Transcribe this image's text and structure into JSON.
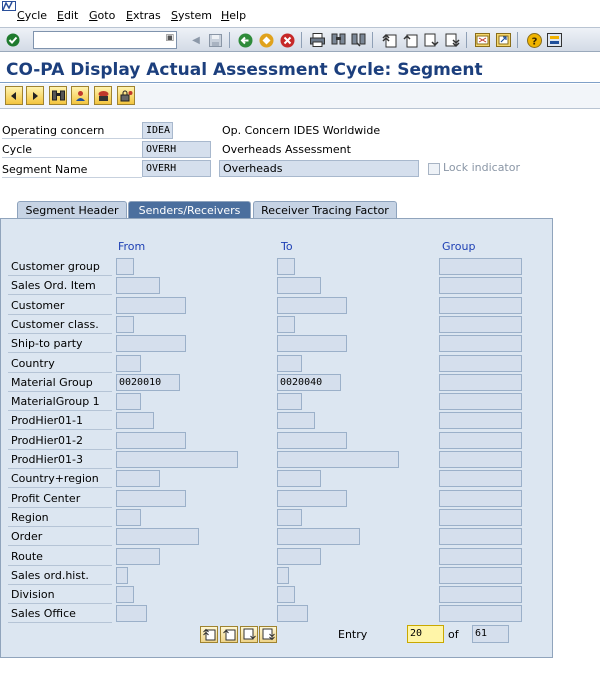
{
  "menubar": {
    "items": [
      {
        "label": "Cycle",
        "mnemonic": "C",
        "rest": "ycle"
      },
      {
        "label": "Edit",
        "mnemonic": "E",
        "rest": "dit"
      },
      {
        "label": "Goto",
        "mnemonic": "G",
        "rest": "oto"
      },
      {
        "label": "Extras",
        "mnemonic": "E",
        "rest": "xtras"
      },
      {
        "label": "System",
        "mnemonic": "S",
        "rest": "ystem"
      },
      {
        "label": "Help",
        "mnemonic": "H",
        "rest": "elp"
      }
    ]
  },
  "toolbar": {
    "command_value": "",
    "icons": [
      "enter-icon",
      "save-icon",
      "back-icon",
      "exit-icon",
      "cancel-icon",
      "print-icon",
      "find-icon",
      "find-next-icon",
      "first-page-icon",
      "previous-page-icon",
      "next-page-icon",
      "last-page-icon",
      "create-session-icon",
      "shortcut-icon",
      "help-icon",
      "customize-layout-icon"
    ]
  },
  "title": "CO-PA Display Actual Assessment Cycle: Segment",
  "appbar": {
    "icons": [
      "previous-segment-icon",
      "next-segment-icon",
      "find-segment-icon",
      "other-segment-icon",
      "attributes-icon",
      "lock-icon"
    ]
  },
  "header": {
    "operating_concern": {
      "label": "Operating concern",
      "value": "IDEA",
      "desc": "Op. Concern IDES Worldwide"
    },
    "cycle": {
      "label": "Cycle",
      "value": "OVERH",
      "desc": "Overheads Assessment"
    },
    "segment_name": {
      "label": "Segment Name",
      "value": "OVERH",
      "desc": "Overheads"
    },
    "lock_indicator": {
      "label": "Lock indicator",
      "checked": false
    }
  },
  "tabs": [
    {
      "label": "Segment Header",
      "active": false
    },
    {
      "label": "Senders/Receivers",
      "active": true
    },
    {
      "label": "Receiver Tracing Factor",
      "active": false
    }
  ],
  "columns": {
    "from": "From",
    "to": "To",
    "group": "Group"
  },
  "rows": [
    {
      "label": "Customer group",
      "from": "",
      "to": ""
    },
    {
      "label": "Sales Ord. Item",
      "from": "",
      "to": ""
    },
    {
      "label": "Customer",
      "from": "",
      "to": ""
    },
    {
      "label": "Customer class.",
      "from": "",
      "to": ""
    },
    {
      "label": "Ship-to party",
      "from": "",
      "to": ""
    },
    {
      "label": "Country",
      "from": "",
      "to": ""
    },
    {
      "label": "Material Group",
      "from": "0020010",
      "to": "0020040"
    },
    {
      "label": "MaterialGroup 1",
      "from": "",
      "to": ""
    },
    {
      "label": "ProdHier01-1",
      "from": "",
      "to": ""
    },
    {
      "label": "ProdHier01-2",
      "from": "",
      "to": ""
    },
    {
      "label": "ProdHier01-3",
      "from": "",
      "to": ""
    },
    {
      "label": "Country+region",
      "from": "",
      "to": ""
    },
    {
      "label": "Profit Center",
      "from": "",
      "to": ""
    },
    {
      "label": "Region",
      "from": "",
      "to": ""
    },
    {
      "label": "Order",
      "from": "",
      "to": ""
    },
    {
      "label": "Route",
      "from": "",
      "to": ""
    },
    {
      "label": "Sales ord.hist.",
      "from": "",
      "to": ""
    },
    {
      "label": "Division",
      "from": "",
      "to": ""
    },
    {
      "label": "Sales Office",
      "from": "",
      "to": ""
    }
  ],
  "paging": {
    "icons": [
      "first-page-icon",
      "previous-page-icon",
      "next-page-icon",
      "last-page-icon"
    ],
    "entry_label": "Entry",
    "entry_value": "20",
    "of_label": "of",
    "total": "61"
  },
  "colors": {
    "title": "#1c3f7d",
    "active_tab": "#4b6f9e",
    "column_header": "#1d3fb4",
    "panel": "#dce6f1"
  }
}
